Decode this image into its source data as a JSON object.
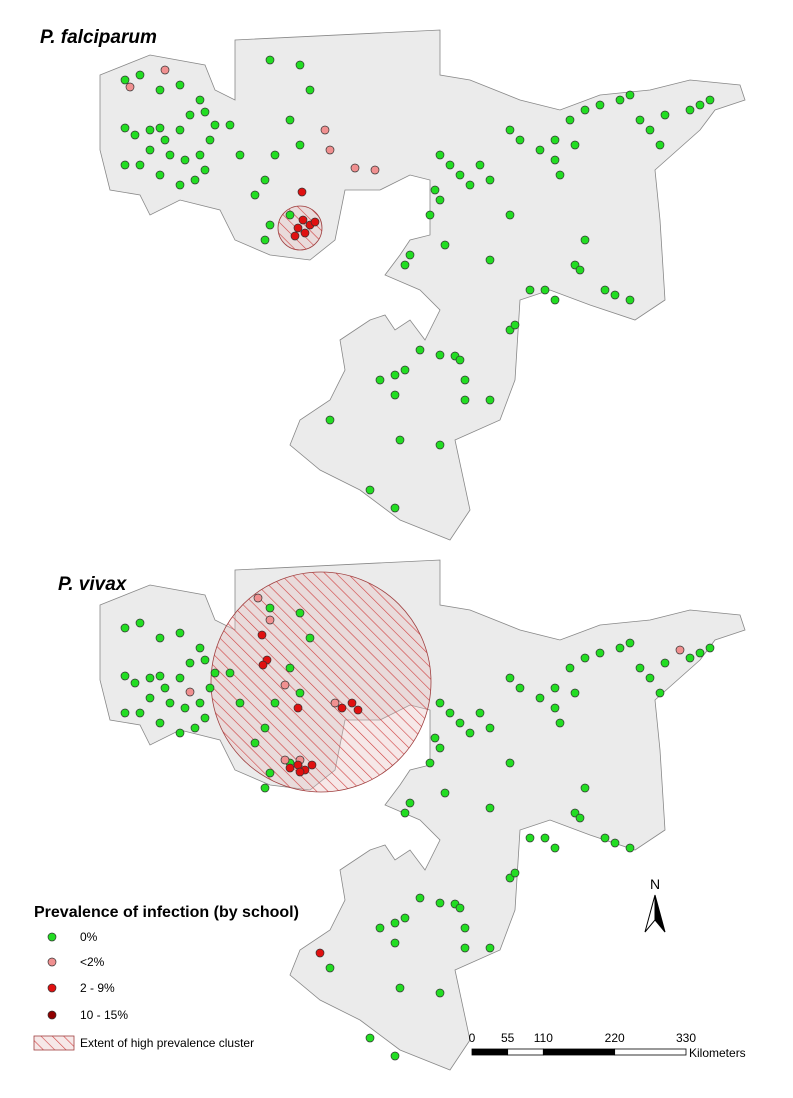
{
  "panels": [
    {
      "title": "P. falciparum"
    },
    {
      "title": "P. vivax"
    }
  ],
  "legend": {
    "title": "Prevalence of infection (by school)",
    "items": [
      "0%",
      "<2%",
      "2 - 9%",
      "10 - 15%",
      "Extent of high prevalence cluster"
    ]
  },
  "scale_bar": {
    "ticks": [
      0,
      55,
      110,
      220,
      330
    ],
    "unit": "Kilometers"
  },
  "north": "N"
}
